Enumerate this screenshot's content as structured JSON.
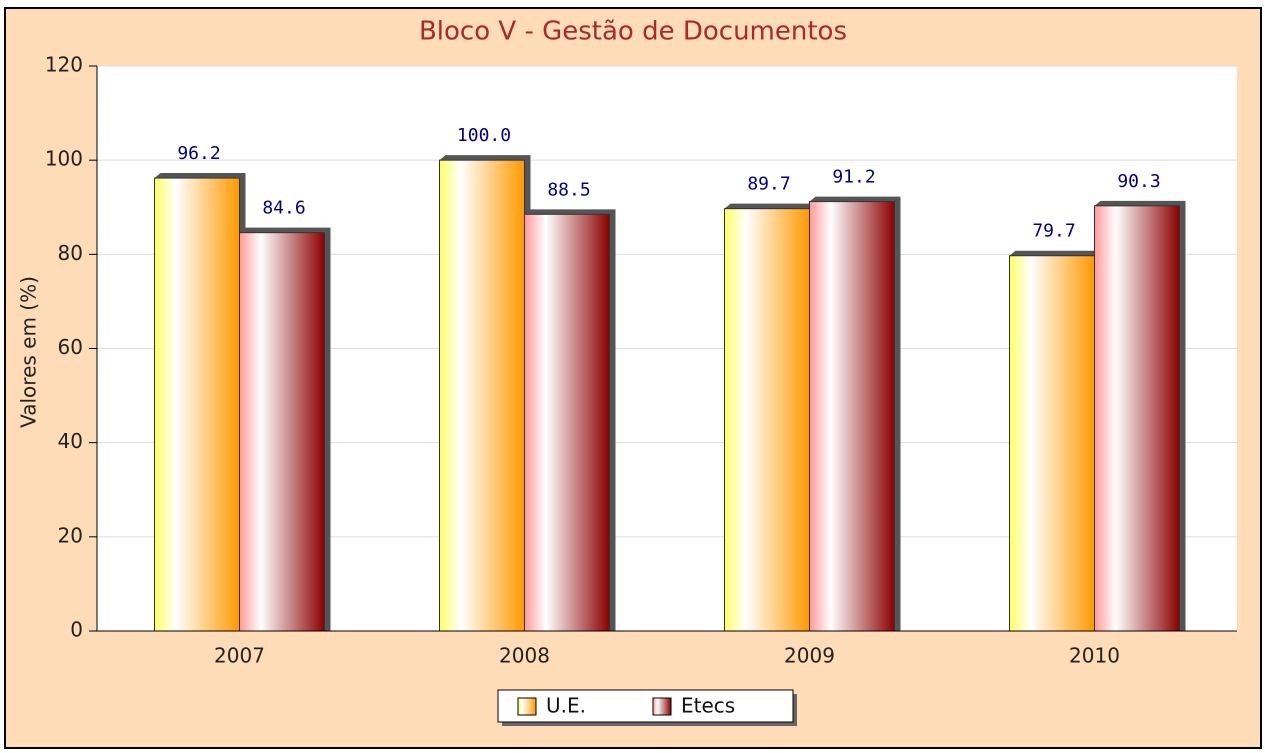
{
  "chart_data": {
    "type": "bar",
    "title": "Bloco V - Gestão de Documentos",
    "y_label": "Valores em (%)",
    "categories": [
      "2007",
      "2008",
      "2009",
      "2010"
    ],
    "series": [
      {
        "name": "U.E.",
        "color": "#ff9900",
        "values": [
          96.2,
          100.0,
          89.7,
          79.7
        ],
        "value_labels": [
          "96.2",
          "100.0",
          "89.7",
          "79.7"
        ]
      },
      {
        "name": "Etecs",
        "color": "#8b0000",
        "values": [
          84.6,
          88.5,
          91.2,
          90.3
        ],
        "value_labels": [
          "84.6",
          "88.5",
          "91.2",
          "90.3"
        ]
      }
    ],
    "ylim": [
      0,
      120
    ],
    "yticks": [
      0,
      20,
      40,
      60,
      80,
      100,
      120
    ],
    "grid": true,
    "legend": "bottom"
  }
}
